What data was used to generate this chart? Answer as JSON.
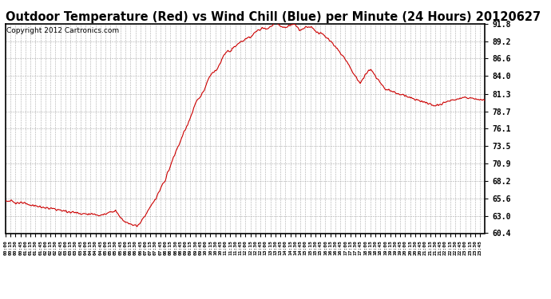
{
  "title": "Outdoor Temperature (Red) vs Wind Chill (Blue) per Minute (24 Hours) 20120627",
  "copyright": "Copyright 2012 Cartronics.com",
  "ylabel_right_ticks": [
    60.4,
    63.0,
    65.6,
    68.2,
    70.9,
    73.5,
    76.1,
    78.7,
    81.3,
    84.0,
    86.6,
    89.2,
    91.8
  ],
  "ymin": 60.4,
  "ymax": 91.8,
  "line_color_temp": "#cc0000",
  "background_color": "#ffffff",
  "grid_color": "#aaaaaa",
  "title_fontsize": 10.5,
  "copyright_fontsize": 6.5,
  "x_tick_interval_minutes": 15,
  "total_minutes": 1440,
  "curve_keypoints": [
    [
      0,
      65.3
    ],
    [
      60,
      64.8
    ],
    [
      120,
      64.2
    ],
    [
      150,
      64.0
    ],
    [
      180,
      63.7
    ],
    [
      210,
      63.5
    ],
    [
      240,
      63.3
    ],
    [
      270,
      63.2
    ],
    [
      300,
      63.2
    ],
    [
      315,
      63.6
    ],
    [
      330,
      63.8
    ],
    [
      345,
      62.8
    ],
    [
      360,
      62.1
    ],
    [
      375,
      61.8
    ],
    [
      390,
      61.6
    ],
    [
      395,
      61.5
    ],
    [
      400,
      61.7
    ],
    [
      410,
      62.4
    ],
    [
      420,
      63.2
    ],
    [
      450,
      65.5
    ],
    [
      480,
      68.5
    ],
    [
      510,
      72.5
    ],
    [
      540,
      76.0
    ],
    [
      570,
      79.5
    ],
    [
      600,
      82.5
    ],
    [
      630,
      85.0
    ],
    [
      660,
      87.2
    ],
    [
      690,
      88.5
    ],
    [
      720,
      89.5
    ],
    [
      735,
      89.8
    ],
    [
      750,
      90.5
    ],
    [
      765,
      91.0
    ],
    [
      780,
      91.3
    ],
    [
      795,
      91.6
    ],
    [
      810,
      91.7
    ],
    [
      825,
      91.5
    ],
    [
      840,
      91.6
    ],
    [
      855,
      91.5
    ],
    [
      870,
      91.4
    ],
    [
      885,
      91.2
    ],
    [
      900,
      91.3
    ],
    [
      915,
      91.1
    ],
    [
      930,
      90.9
    ],
    [
      945,
      90.6
    ],
    [
      960,
      90.0
    ],
    [
      975,
      89.2
    ],
    [
      990,
      88.5
    ],
    [
      1005,
      87.5
    ],
    [
      1020,
      86.5
    ],
    [
      1035,
      85.2
    ],
    [
      1050,
      84.0
    ],
    [
      1065,
      82.8
    ],
    [
      1080,
      84.2
    ],
    [
      1095,
      85.0
    ],
    [
      1110,
      84.0
    ],
    [
      1125,
      83.0
    ],
    [
      1140,
      82.0
    ],
    [
      1170,
      81.5
    ],
    [
      1200,
      81.0
    ],
    [
      1230,
      80.5
    ],
    [
      1260,
      80.0
    ],
    [
      1290,
      79.5
    ],
    [
      1320,
      80.0
    ],
    [
      1350,
      80.5
    ],
    [
      1380,
      80.8
    ],
    [
      1410,
      80.5
    ],
    [
      1439,
      80.3
    ]
  ]
}
